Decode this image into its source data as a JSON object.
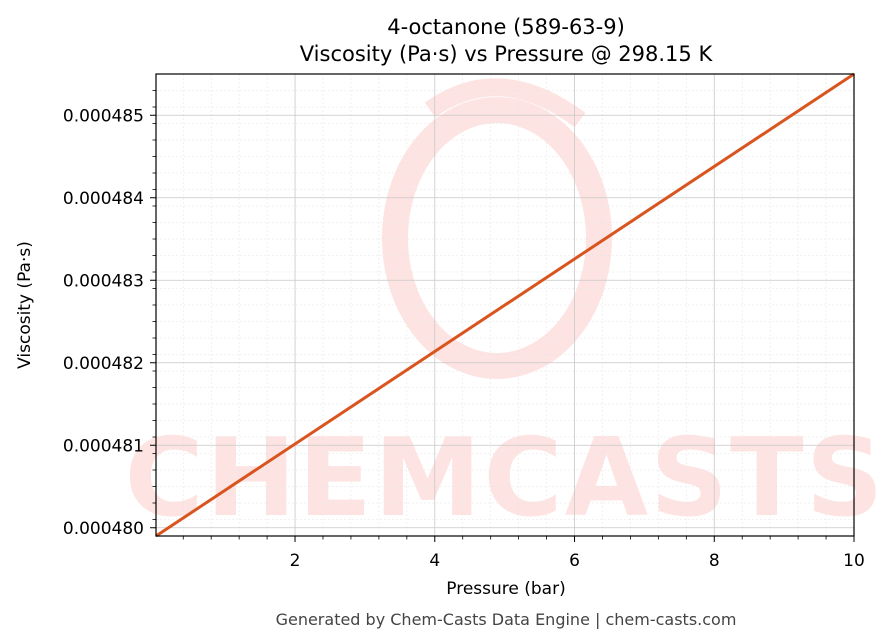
{
  "chart_data": {
    "type": "line",
    "title": "4-octanone (589-63-9)",
    "subtitle": "Viscosity (Pa·s) vs Pressure @ 298.15 K",
    "xlabel": "Pressure (bar)",
    "ylabel": "Viscosity (Pa·s)",
    "xlim": [
      0.01,
      10
    ],
    "ylim": [
      0.0004799,
      0.0004855
    ],
    "x_ticks": [
      2,
      4,
      6,
      8,
      10
    ],
    "x_tick_labels": [
      "2",
      "4",
      "6",
      "8",
      "10"
    ],
    "y_ticks": [
      0.00048,
      0.000481,
      0.000482,
      0.000483,
      0.000484,
      0.000485
    ],
    "y_tick_labels": [
      "0.000480",
      "0.000481",
      "0.000482",
      "0.000483",
      "0.000484",
      "0.000485"
    ],
    "grid": true,
    "series": [
      {
        "color": "#d9541e",
        "x": [
          0.01,
          10
        ],
        "y": [
          0.0004799,
          0.0004855
        ]
      }
    ]
  },
  "watermark": {
    "text": "CHEMCASTS",
    "color": "#fde4e2"
  },
  "footer": "Generated by Chem-Casts Data Engine | chem-casts.com"
}
